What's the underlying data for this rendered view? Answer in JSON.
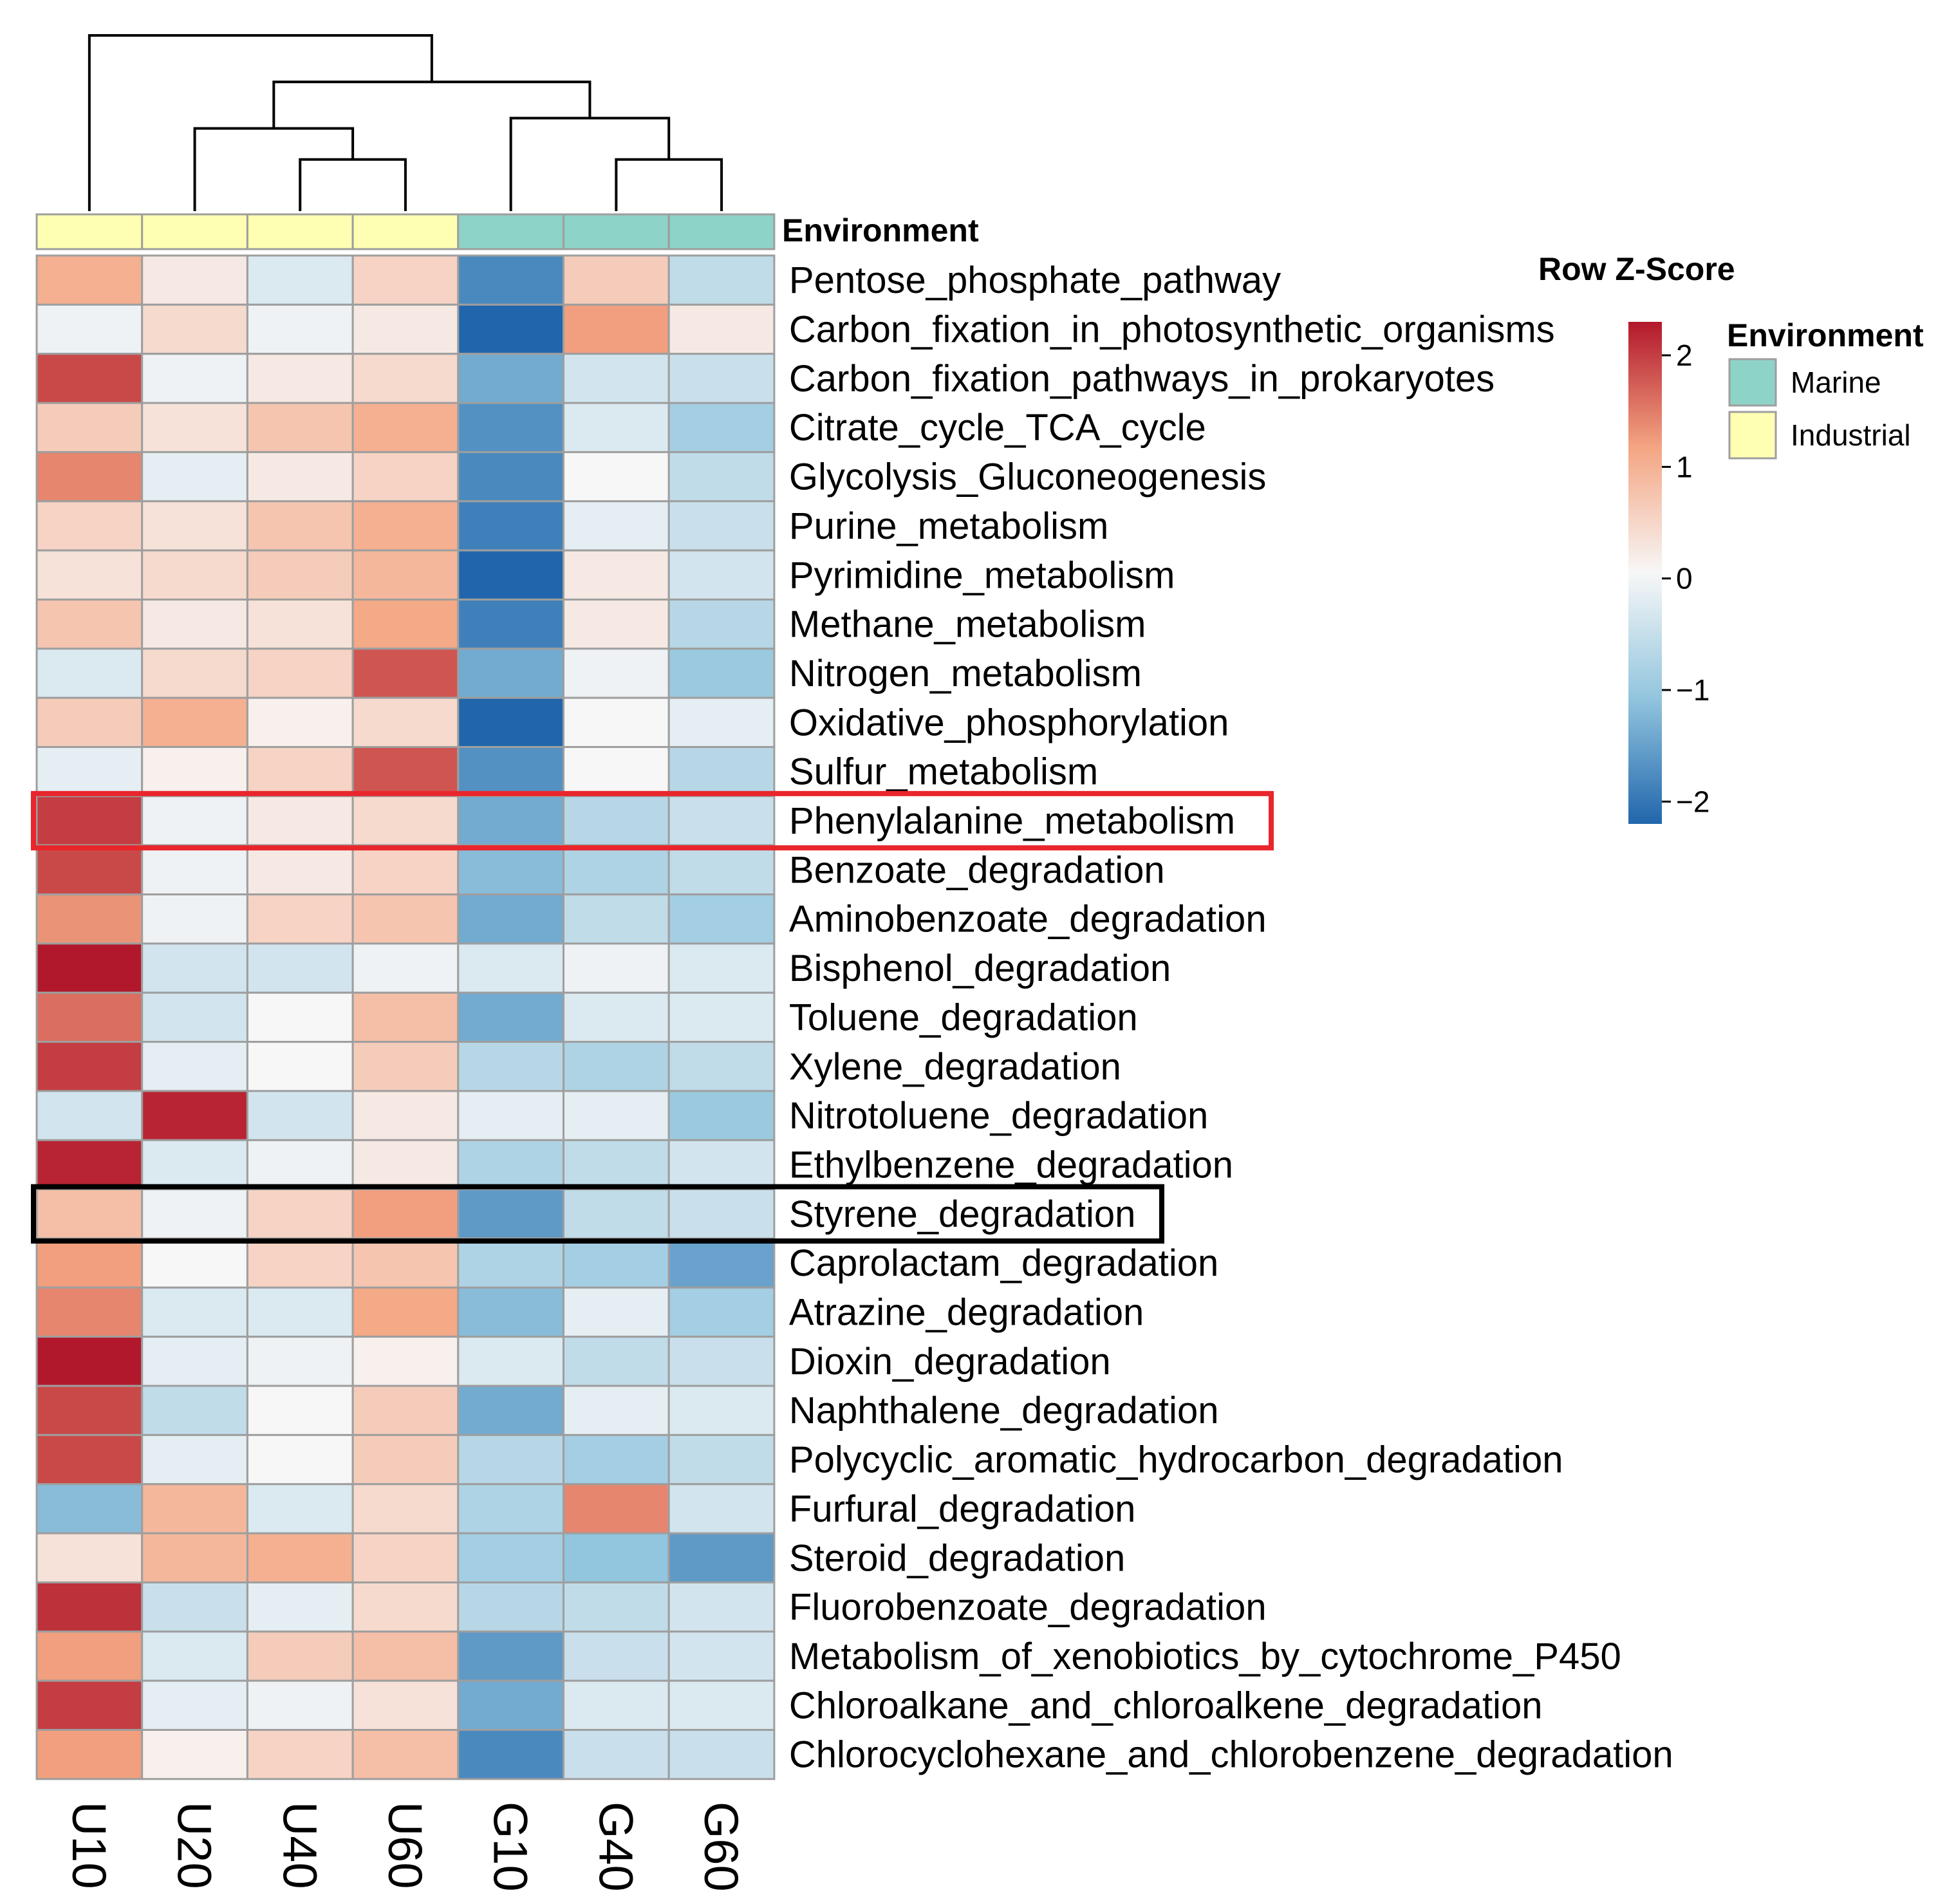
{
  "chart_data": {
    "type": "heatmap",
    "title": "",
    "columns": [
      "U10",
      "U20",
      "U40",
      "U60",
      "G10",
      "G40",
      "G60"
    ],
    "column_environment": [
      "Industrial",
      "Industrial",
      "Industrial",
      "Industrial",
      "Marine",
      "Marine",
      "Marine"
    ],
    "environment_annotation_label": "Environment",
    "environment_colors": {
      "Marine": "#8ed3c7",
      "Industrial": "#ffffb3"
    },
    "rows": [
      {
        "name": "Pentose_phosphate_pathway",
        "values": [
          1.0,
          0.2,
          -0.3,
          0.5,
          -1.8,
          0.6,
          -0.6
        ]
      },
      {
        "name": "Carbon_fixation_in_photosynthetic_organisms",
        "values": [
          -0.1,
          0.4,
          -0.1,
          0.2,
          -2.2,
          1.2,
          0.2
        ]
      },
      {
        "name": "Carbon_fixation_pathways_in_prokaryotes",
        "values": [
          1.9,
          -0.1,
          0.2,
          0.4,
          -1.4,
          -0.4,
          -0.5
        ]
      },
      {
        "name": "Citrate_cycle_TCA_cycle",
        "values": [
          0.6,
          0.3,
          0.7,
          1.0,
          -1.7,
          -0.3,
          -0.9
        ]
      },
      {
        "name": "Glycolysis_Gluconeogenesis",
        "values": [
          1.4,
          -0.2,
          0.2,
          0.5,
          -1.8,
          0.0,
          -0.6
        ]
      },
      {
        "name": "Purine_metabolism",
        "values": [
          0.5,
          0.3,
          0.7,
          1.0,
          -1.9,
          -0.2,
          -0.5
        ]
      },
      {
        "name": "Pyrimidine_metabolism",
        "values": [
          0.3,
          0.4,
          0.6,
          0.9,
          -2.2,
          0.2,
          -0.4
        ]
      },
      {
        "name": "Methane_metabolism",
        "values": [
          0.7,
          0.2,
          0.3,
          1.1,
          -1.9,
          0.2,
          -0.7
        ]
      },
      {
        "name": "Nitrogen_metabolism",
        "values": [
          -0.3,
          0.4,
          0.5,
          1.8,
          -1.4,
          -0.1,
          -1.0
        ]
      },
      {
        "name": "Oxidative_phosphorylation",
        "values": [
          0.6,
          1.0,
          0.1,
          0.4,
          -2.2,
          0.0,
          -0.2
        ]
      },
      {
        "name": "Sulfur_metabolism",
        "values": [
          -0.2,
          0.1,
          0.5,
          1.8,
          -1.7,
          0.0,
          -0.7
        ]
      },
      {
        "name": "Phenylalanine_metabolism",
        "values": [
          2.0,
          -0.1,
          0.2,
          0.4,
          -1.4,
          -0.7,
          -0.5
        ]
      },
      {
        "name": "Benzoate_degradation",
        "values": [
          1.9,
          -0.1,
          0.2,
          0.5,
          -1.2,
          -0.8,
          -0.6
        ]
      },
      {
        "name": "Aminobenzoate_degradation",
        "values": [
          1.3,
          -0.1,
          0.5,
          0.7,
          -1.4,
          -0.6,
          -0.9
        ]
      },
      {
        "name": "Bisphenol_degradation",
        "values": [
          2.4,
          -0.4,
          -0.4,
          -0.1,
          -0.3,
          -0.1,
          -0.3
        ]
      },
      {
        "name": "Toluene_degradation",
        "values": [
          1.6,
          -0.4,
          0.0,
          0.8,
          -1.4,
          -0.3,
          -0.3
        ]
      },
      {
        "name": "Xylene_degradation",
        "values": [
          2.0,
          -0.2,
          0.0,
          0.6,
          -0.7,
          -0.8,
          -0.6
        ]
      },
      {
        "name": "Nitrotoluene_degradation",
        "values": [
          -0.4,
          2.2,
          -0.4,
          0.2,
          -0.2,
          -0.2,
          -1.0
        ]
      },
      {
        "name": "Ethylbenzene_degradation",
        "values": [
          2.2,
          -0.3,
          -0.1,
          0.2,
          -0.8,
          -0.6,
          -0.4
        ]
      },
      {
        "name": "Styrene_degradation",
        "values": [
          0.8,
          -0.1,
          0.5,
          1.2,
          -1.6,
          -0.6,
          -0.5
        ]
      },
      {
        "name": "Caprolactam_degradation",
        "values": [
          1.2,
          0.0,
          0.5,
          0.7,
          -0.8,
          -0.9,
          -1.5
        ]
      },
      {
        "name": "Atrazine_degradation",
        "values": [
          1.4,
          -0.3,
          -0.3,
          1.1,
          -1.2,
          -0.2,
          -0.9
        ]
      },
      {
        "name": "Dioxin_degradation",
        "values": [
          2.4,
          -0.2,
          -0.1,
          0.1,
          -0.3,
          -0.6,
          -0.5
        ]
      },
      {
        "name": "Naphthalene_degradation",
        "values": [
          1.9,
          -0.6,
          0.0,
          0.6,
          -1.4,
          -0.2,
          -0.3
        ]
      },
      {
        "name": "Polycyclic_aromatic_hydrocarbon_degradation",
        "values": [
          1.9,
          -0.2,
          0.0,
          0.6,
          -0.7,
          -0.9,
          -0.6
        ]
      },
      {
        "name": "Furfural_degradation",
        "values": [
          -1.2,
          0.9,
          -0.3,
          0.4,
          -0.8,
          1.4,
          -0.4
        ]
      },
      {
        "name": "Steroid_degradation",
        "values": [
          0.3,
          0.9,
          1.0,
          0.5,
          -0.9,
          -1.1,
          -1.6
        ]
      },
      {
        "name": "Fluorobenzoate_degradation",
        "values": [
          2.1,
          -0.5,
          -0.2,
          0.4,
          -0.7,
          -0.6,
          -0.4
        ]
      },
      {
        "name": "Metabolism_of_xenobiotics_by_cytochrome_P450",
        "values": [
          1.2,
          -0.3,
          0.6,
          0.8,
          -1.6,
          -0.5,
          -0.4
        ]
      },
      {
        "name": "Chloroalkane_and_chloroalkene_degradation",
        "values": [
          2.0,
          -0.2,
          -0.1,
          0.3,
          -1.4,
          -0.3,
          -0.3
        ]
      },
      {
        "name": "Chlorocyclohexane_and_chlorobenzene_degradation",
        "values": [
          1.2,
          0.1,
          0.5,
          0.8,
          -1.8,
          -0.5,
          -0.5
        ]
      }
    ],
    "highlighted_rows": [
      {
        "name": "Phenylalanine_metabolism",
        "box_color": "#e8262c"
      },
      {
        "name": "Styrene_degradation",
        "box_color": "#000000"
      }
    ],
    "column_dendrogram": [
      {
        "a": 2,
        "b": 3,
        "height": 1.0
      },
      {
        "a": 1,
        "b": 2.5,
        "height": 1.6
      },
      {
        "a": 5,
        "b": 6,
        "height": 1.0
      },
      {
        "a": 4,
        "b": 5.5,
        "height": 1.8
      },
      {
        "a": 1.75,
        "b": 4.75,
        "height": 2.5
      },
      {
        "a": 0,
        "b": 3.25,
        "height": 3.4
      }
    ],
    "color_scale": {
      "label": "Row Z-Score",
      "range": [
        -2.2,
        2.3
      ],
      "ticks": [
        "2",
        "1",
        "0",
        "−1",
        "−2"
      ],
      "tick_values": [
        2,
        1,
        0,
        -1,
        -2
      ],
      "low_color": "#2166ac",
      "mid_color": "#f7f7f7",
      "high_color": "#b2182b"
    },
    "legend": {
      "title": "Environment",
      "items": [
        {
          "label": "Marine",
          "color": "#8ed3c7"
        },
        {
          "label": "Industrial",
          "color": "#ffffb3"
        }
      ]
    }
  }
}
